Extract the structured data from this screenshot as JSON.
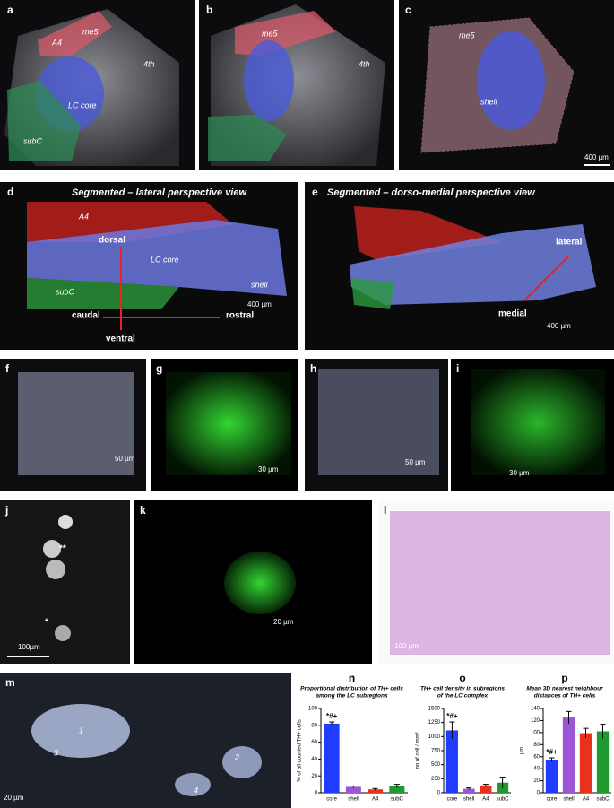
{
  "panels": {
    "a": {
      "letter": "a",
      "region_a4": "A4",
      "region_me5": "me5",
      "ventricle": "4th",
      "region_core": "LC core",
      "region_subc": "subC"
    },
    "b": {
      "letter": "b",
      "region_me5": "me5",
      "ventricle": "4th"
    },
    "c": {
      "letter": "c",
      "region_me5": "me5",
      "region_shell": "shell",
      "scale": "400 µm"
    },
    "d": {
      "letter": "d",
      "title": "Segmented – lateral perspective view",
      "region_a4": "A4",
      "dorsal": "dorsal",
      "region_core": "LC core",
      "region_shell": "shell",
      "region_subc": "subC",
      "caudal": "caudal",
      "rostral": "rostral",
      "ventral": "ventral",
      "scale": "400 µm"
    },
    "e": {
      "letter": "e",
      "title": "Segmented – dorso-medial perspective view",
      "lateral": "lateral",
      "medial": "medial",
      "scale": "400 µm"
    },
    "f": {
      "letter": "f",
      "scale": "50 µm"
    },
    "g": {
      "letter": "g",
      "scale": "30 µm"
    },
    "h": {
      "letter": "h",
      "scale": "50 µm"
    },
    "i": {
      "letter": "i",
      "scale": "30 µm"
    },
    "j": {
      "letter": "j",
      "mark_double": "**",
      "mark_single": "*",
      "scale": "100µm"
    },
    "k": {
      "letter": "k",
      "scale": "20 µm"
    },
    "l": {
      "letter": "l",
      "scale": "100 µm"
    },
    "m": {
      "letter": "m",
      "cell_1": "1",
      "cell_2": "2",
      "cell_3": "3",
      "cell_4": "4",
      "scale": "20 µm"
    }
  },
  "chart_data": [
    {
      "type": "bar",
      "letter": "n",
      "title": [
        "Proportional distribution of TH+ cells",
        "among the LC subregions"
      ],
      "y_label": "% of all counted TH+ cells",
      "categories": [
        "core",
        "shell",
        "A4",
        "subC"
      ],
      "values": [
        82,
        7,
        4,
        8
      ],
      "errors": [
        2,
        1,
        1,
        2
      ],
      "colors": [
        "#1f3cff",
        "#9b55d6",
        "#e8321e",
        "#1f9a2e"
      ],
      "annotation": "*#+",
      "ylim": [
        0,
        100
      ],
      "yticks": [
        0,
        20,
        40,
        60,
        80,
        100
      ]
    },
    {
      "type": "bar",
      "letter": "o",
      "title": [
        "TH+ cell density in subregions",
        "of the LC complex"
      ],
      "y_label": "no of cell / mm³",
      "categories": [
        "core",
        "shell",
        "A4",
        "subC"
      ],
      "values": [
        1110,
        70,
        130,
        180
      ],
      "errors": [
        150,
        15,
        20,
        100
      ],
      "colors": [
        "#1f3cff",
        "#9b55d6",
        "#e8321e",
        "#1f9a2e"
      ],
      "annotation": "*#+",
      "ylim": [
        0,
        1500
      ],
      "yticks": [
        0,
        250,
        500,
        750,
        1000,
        1250,
        1500
      ]
    },
    {
      "type": "bar",
      "letter": "p",
      "title": [
        "Mean 3D nearest neighbour",
        "distances of TH+ cells"
      ],
      "y_label": "µm",
      "categories": [
        "core",
        "shell",
        "A4",
        "subC"
      ],
      "values": [
        55,
        125,
        99,
        102
      ],
      "errors": [
        3,
        10,
        8,
        12
      ],
      "colors": [
        "#1f3cff",
        "#9b55d6",
        "#e8321e",
        "#1f9a2e"
      ],
      "annotation": "*#+",
      "ylim": [
        0,
        140
      ],
      "yticks": [
        0,
        20,
        40,
        60,
        80,
        100,
        120,
        140
      ]
    }
  ]
}
